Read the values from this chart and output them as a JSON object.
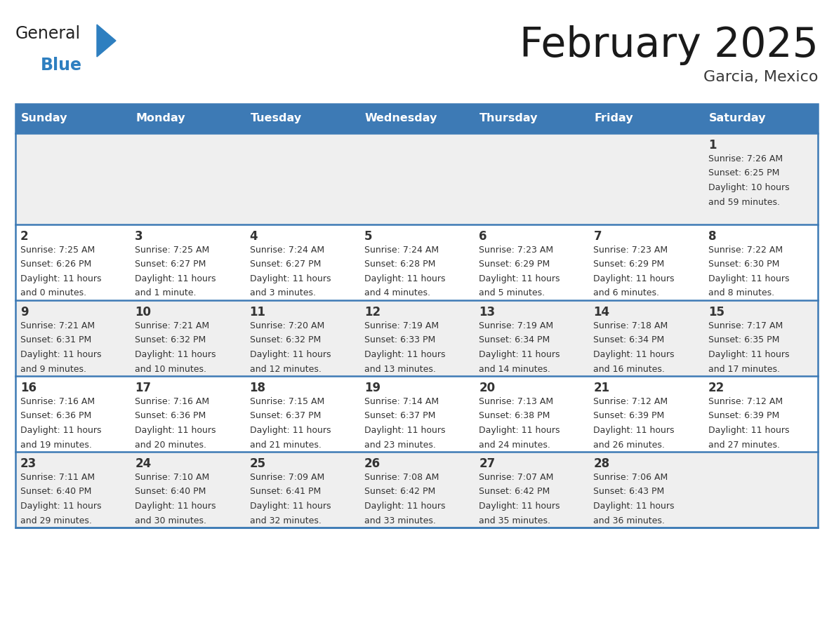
{
  "title": "February 2025",
  "subtitle": "Garcia, Mexico",
  "days_of_week": [
    "Sunday",
    "Monday",
    "Tuesday",
    "Wednesday",
    "Thursday",
    "Friday",
    "Saturday"
  ],
  "header_bg": "#3d7ab5",
  "header_text": "#ffffff",
  "row_bg_odd": "#efefef",
  "row_bg_even": "#ffffff",
  "border_color": "#3d7ab5",
  "day_num_color": "#333333",
  "text_color": "#333333",
  "calendar_data": [
    [
      null,
      null,
      null,
      null,
      null,
      null,
      {
        "day": "1",
        "sunrise": "7:26 AM",
        "sunset": "6:25 PM",
        "daylight": "10 hours",
        "daylight2": "and 59 minutes."
      }
    ],
    [
      {
        "day": "2",
        "sunrise": "7:25 AM",
        "sunset": "6:26 PM",
        "daylight": "11 hours",
        "daylight2": "and 0 minutes."
      },
      {
        "day": "3",
        "sunrise": "7:25 AM",
        "sunset": "6:27 PM",
        "daylight": "11 hours",
        "daylight2": "and 1 minute."
      },
      {
        "day": "4",
        "sunrise": "7:24 AM",
        "sunset": "6:27 PM",
        "daylight": "11 hours",
        "daylight2": "and 3 minutes."
      },
      {
        "day": "5",
        "sunrise": "7:24 AM",
        "sunset": "6:28 PM",
        "daylight": "11 hours",
        "daylight2": "and 4 minutes."
      },
      {
        "day": "6",
        "sunrise": "7:23 AM",
        "sunset": "6:29 PM",
        "daylight": "11 hours",
        "daylight2": "and 5 minutes."
      },
      {
        "day": "7",
        "sunrise": "7:23 AM",
        "sunset": "6:29 PM",
        "daylight": "11 hours",
        "daylight2": "and 6 minutes."
      },
      {
        "day": "8",
        "sunrise": "7:22 AM",
        "sunset": "6:30 PM",
        "daylight": "11 hours",
        "daylight2": "and 8 minutes."
      }
    ],
    [
      {
        "day": "9",
        "sunrise": "7:21 AM",
        "sunset": "6:31 PM",
        "daylight": "11 hours",
        "daylight2": "and 9 minutes."
      },
      {
        "day": "10",
        "sunrise": "7:21 AM",
        "sunset": "6:32 PM",
        "daylight": "11 hours",
        "daylight2": "and 10 minutes."
      },
      {
        "day": "11",
        "sunrise": "7:20 AM",
        "sunset": "6:32 PM",
        "daylight": "11 hours",
        "daylight2": "and 12 minutes."
      },
      {
        "day": "12",
        "sunrise": "7:19 AM",
        "sunset": "6:33 PM",
        "daylight": "11 hours",
        "daylight2": "and 13 minutes."
      },
      {
        "day": "13",
        "sunrise": "7:19 AM",
        "sunset": "6:34 PM",
        "daylight": "11 hours",
        "daylight2": "and 14 minutes."
      },
      {
        "day": "14",
        "sunrise": "7:18 AM",
        "sunset": "6:34 PM",
        "daylight": "11 hours",
        "daylight2": "and 16 minutes."
      },
      {
        "day": "15",
        "sunrise": "7:17 AM",
        "sunset": "6:35 PM",
        "daylight": "11 hours",
        "daylight2": "and 17 minutes."
      }
    ],
    [
      {
        "day": "16",
        "sunrise": "7:16 AM",
        "sunset": "6:36 PM",
        "daylight": "11 hours",
        "daylight2": "and 19 minutes."
      },
      {
        "day": "17",
        "sunrise": "7:16 AM",
        "sunset": "6:36 PM",
        "daylight": "11 hours",
        "daylight2": "and 20 minutes."
      },
      {
        "day": "18",
        "sunrise": "7:15 AM",
        "sunset": "6:37 PM",
        "daylight": "11 hours",
        "daylight2": "and 21 minutes."
      },
      {
        "day": "19",
        "sunrise": "7:14 AM",
        "sunset": "6:37 PM",
        "daylight": "11 hours",
        "daylight2": "and 23 minutes."
      },
      {
        "day": "20",
        "sunrise": "7:13 AM",
        "sunset": "6:38 PM",
        "daylight": "11 hours",
        "daylight2": "and 24 minutes."
      },
      {
        "day": "21",
        "sunrise": "7:12 AM",
        "sunset": "6:39 PM",
        "daylight": "11 hours",
        "daylight2": "and 26 minutes."
      },
      {
        "day": "22",
        "sunrise": "7:12 AM",
        "sunset": "6:39 PM",
        "daylight": "11 hours",
        "daylight2": "and 27 minutes."
      }
    ],
    [
      {
        "day": "23",
        "sunrise": "7:11 AM",
        "sunset": "6:40 PM",
        "daylight": "11 hours",
        "daylight2": "and 29 minutes."
      },
      {
        "day": "24",
        "sunrise": "7:10 AM",
        "sunset": "6:40 PM",
        "daylight": "11 hours",
        "daylight2": "and 30 minutes."
      },
      {
        "day": "25",
        "sunrise": "7:09 AM",
        "sunset": "6:41 PM",
        "daylight": "11 hours",
        "daylight2": "and 32 minutes."
      },
      {
        "day": "26",
        "sunrise": "7:08 AM",
        "sunset": "6:42 PM",
        "daylight": "11 hours",
        "daylight2": "and 33 minutes."
      },
      {
        "day": "27",
        "sunrise": "7:07 AM",
        "sunset": "6:42 PM",
        "daylight": "11 hours",
        "daylight2": "and 35 minutes."
      },
      {
        "day": "28",
        "sunrise": "7:06 AM",
        "sunset": "6:43 PM",
        "daylight": "11 hours",
        "daylight2": "and 36 minutes."
      },
      null
    ]
  ]
}
